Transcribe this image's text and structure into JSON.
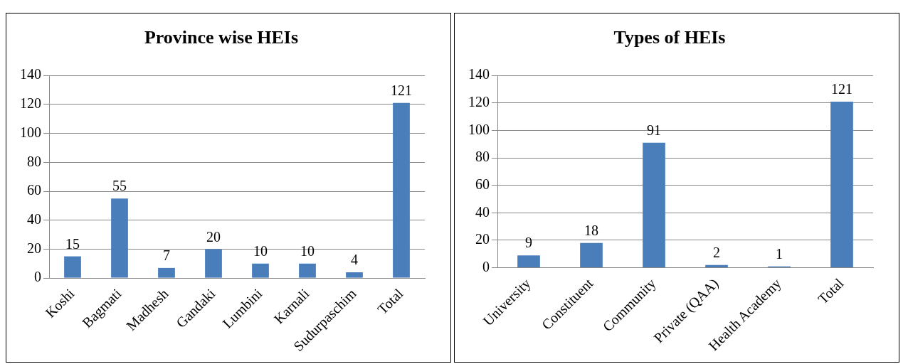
{
  "chart_data": [
    {
      "type": "bar",
      "title": "Province wise HEIs",
      "categories": [
        "Koshi",
        "Bagmati",
        "Madhesh",
        "Gandaki",
        "Lumbini",
        "Karnali",
        "Sudurpaschim",
        "Total"
      ],
      "values": [
        15,
        55,
        7,
        20,
        10,
        10,
        4,
        121
      ],
      "color": "#4a7ebb",
      "ylim": [
        0,
        140
      ],
      "yticks": [
        0,
        20,
        40,
        60,
        80,
        100,
        120,
        140
      ],
      "grid": "y",
      "data_labels": true
    },
    {
      "type": "bar",
      "title": "Types of HEIs",
      "categories": [
        "University",
        "Constituent",
        "Community",
        "Private (QAA)",
        "Health Academy",
        "Total"
      ],
      "values": [
        9,
        18,
        91,
        2,
        1,
        121
      ],
      "color": "#4a7ebb",
      "ylim": [
        0,
        140
      ],
      "yticks": [
        0,
        20,
        40,
        60,
        80,
        100,
        120,
        140
      ],
      "grid": "y",
      "data_labels": true
    }
  ]
}
